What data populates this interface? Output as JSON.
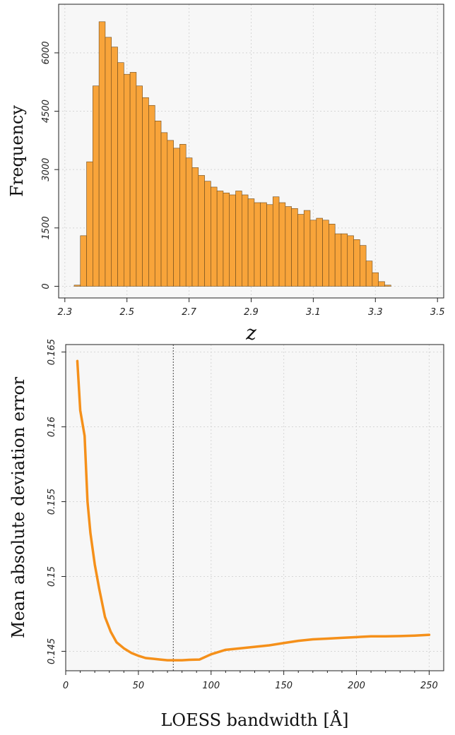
{
  "colors": {
    "bar_fill": "#F8A43A",
    "bar_edge": "#6b4a1e",
    "line": "#F5901A",
    "panel_bg": "#F7F7F7",
    "grid": "#d6d6d6",
    "vline": "#444444"
  },
  "chart_data": [
    {
      "type": "bar",
      "title": "",
      "xlabel": "z",
      "ylabel": "Frequency",
      "xlim": [
        2.28,
        3.52
      ],
      "ylim": [
        -300,
        7250
      ],
      "grid": true,
      "x_ticks": [
        2.3,
        2.5,
        2.7,
        2.9,
        3.1,
        3.3,
        3.5
      ],
      "x_tick_labels": [
        "2.3",
        "2.5",
        "2.7",
        "2.9",
        "3.1",
        "3.3",
        "3.5"
      ],
      "y_ticks": [
        0,
        1500,
        3000,
        4500,
        6000
      ],
      "y_tick_labels": [
        "0",
        "1500",
        "3000",
        "4500",
        "6000"
      ],
      "bin_start": 2.33,
      "bin_width": 0.02,
      "values": [
        30,
        1300,
        3200,
        5150,
        6800,
        6400,
        6150,
        5750,
        5450,
        5500,
        5150,
        4850,
        4650,
        4250,
        3950,
        3750,
        3550,
        3650,
        3300,
        3050,
        2850,
        2700,
        2550,
        2450,
        2400,
        2350,
        2450,
        2350,
        2250,
        2150,
        2150,
        2100,
        2300,
        2150,
        2050,
        2000,
        1850,
        1950,
        1700,
        1750,
        1700,
        1600,
        1350,
        1350,
        1300,
        1200,
        1050,
        650,
        350,
        120,
        30
      ]
    },
    {
      "type": "line",
      "title": "",
      "xlabel": "LOESS bandwidth [Å]",
      "ylabel": "Mean absolute deviation error",
      "xlim": [
        0,
        260
      ],
      "ylim": [
        0.1437,
        0.1655
      ],
      "grid": true,
      "x_ticks": [
        0,
        50,
        100,
        150,
        200,
        250
      ],
      "x_tick_labels": [
        "0",
        "50",
        "100",
        "150",
        "200",
        "250"
      ],
      "y_ticks": [
        0.145,
        0.15,
        0.155,
        0.16,
        0.165
      ],
      "y_tick_labels": [
        "0.145",
        "0.15",
        "0.155",
        "0.16",
        "0.165"
      ],
      "vline_x": 74,
      "x": [
        8,
        10,
        13,
        15,
        17,
        20,
        23,
        27,
        31,
        35,
        40,
        45,
        50,
        55,
        60,
        65,
        70,
        75,
        80,
        85,
        92,
        100,
        110,
        120,
        130,
        140,
        150,
        160,
        170,
        180,
        190,
        200,
        210,
        220,
        230,
        240,
        250
      ],
      "y": [
        0.1644,
        0.1611,
        0.1594,
        0.155,
        0.1529,
        0.1508,
        0.1492,
        0.1473,
        0.1463,
        0.1456,
        0.1452,
        0.1449,
        0.1447,
        0.14455,
        0.1445,
        0.14445,
        0.1444,
        0.1444,
        0.1444,
        0.14443,
        0.14445,
        0.1448,
        0.1451,
        0.1452,
        0.1453,
        0.1454,
        0.14555,
        0.1457,
        0.1458,
        0.14585,
        0.1459,
        0.14595,
        0.146,
        0.146,
        0.14602,
        0.14605,
        0.1461
      ]
    }
  ]
}
